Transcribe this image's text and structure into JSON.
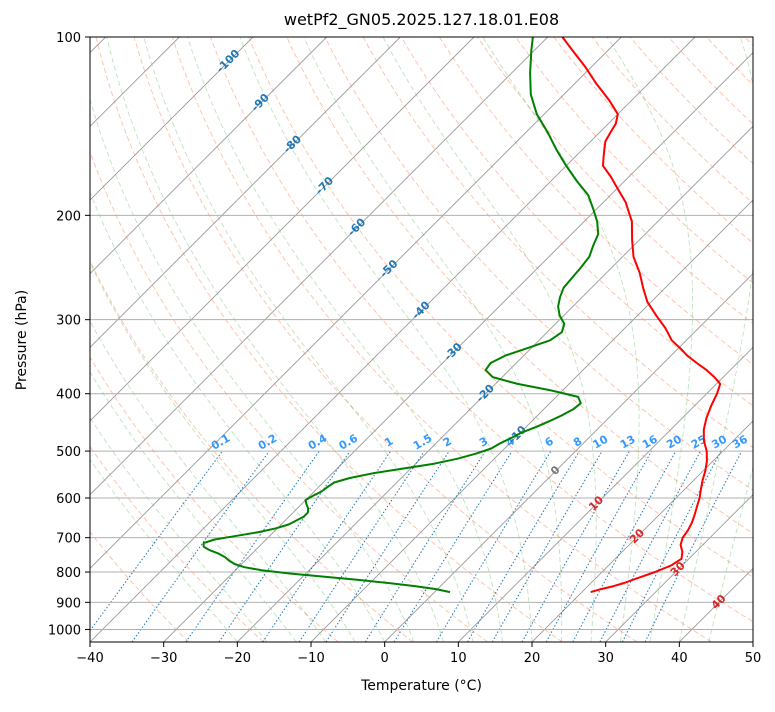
{
  "chart_data": {
    "type": "line",
    "title": "wetPf2_GN05.2025.127.18.01.E08",
    "xlabel": "Temperature (°C)",
    "ylabel": "Pressure (hPa)",
    "xlim": [
      -40,
      50
    ],
    "ylim": [
      1050,
      100
    ],
    "y_scale": "log",
    "grid": true,
    "x_ticks": [
      -40,
      -30,
      -20,
      -10,
      0,
      10,
      20,
      30,
      40,
      50
    ],
    "x_tick_labels": [
      "−40",
      "−30",
      "−20",
      "−10",
      "0",
      "10",
      "20",
      "30",
      "40",
      "50"
    ],
    "y_ticks": [
      100,
      200,
      300,
      400,
      500,
      600,
      700,
      800,
      900,
      1000
    ],
    "y_tick_labels": [
      "100",
      "200",
      "300",
      "400",
      "500",
      "600",
      "700",
      "800",
      "900",
      "1000"
    ],
    "isotherm_labels": [
      {
        "t": -100,
        "label": "-100"
      },
      {
        "t": -90,
        "label": "-90"
      },
      {
        "t": -80,
        "label": "-80"
      },
      {
        "t": -70,
        "label": "-70"
      },
      {
        "t": -60,
        "label": "-60"
      },
      {
        "t": -50,
        "label": "-50"
      },
      {
        "t": -40,
        "label": "-40"
      },
      {
        "t": -30,
        "label": "-30"
      },
      {
        "t": -20,
        "label": "-20"
      },
      {
        "t": -10,
        "label": "-10"
      },
      {
        "t": 0,
        "label": "0"
      },
      {
        "t": 10,
        "label": "10"
      },
      {
        "t": 20,
        "label": "20"
      },
      {
        "t": 30,
        "label": "30"
      },
      {
        "t": 40,
        "label": "40"
      }
    ],
    "mixing_ratio_labels": [
      "0.1",
      "0.2",
      "0.4",
      "0.6",
      "1",
      "1.5",
      "2",
      "3",
      "4",
      "6",
      "8",
      "10",
      "13",
      "16",
      "20",
      "25",
      "30",
      "36"
    ],
    "series": [
      {
        "color": "#ff0000",
        "pressure": [
          865,
          855,
          845,
          835,
          825,
          815,
          800,
          780,
          760,
          740,
          720,
          700,
          680,
          660,
          640,
          620,
          600,
          580,
          560,
          540,
          520,
          500,
          480,
          460,
          440,
          420,
          400,
          385,
          375,
          365,
          355,
          345,
          335,
          325,
          310,
          295,
          280,
          265,
          250,
          235,
          220,
          205,
          190,
          180,
          172,
          165,
          160,
          155,
          150,
          145,
          140,
          135,
          128,
          120,
          112,
          105,
          100
        ],
        "temperature": [
          21.2,
          22.2,
          23.5,
          24.5,
          25.2,
          26,
          27.2,
          28.5,
          29,
          28.2,
          27,
          26.3,
          26,
          25.5,
          24.8,
          24,
          23.2,
          22.2,
          21.2,
          20.3,
          19.2,
          17.8,
          16,
          14.5,
          13.3,
          12.3,
          11.4,
          10.5,
          8.8,
          6.8,
          4.5,
          2.2,
          0.2,
          -2,
          -4.5,
          -7.5,
          -10.5,
          -13,
          -15.5,
          -18.5,
          -21,
          -23.5,
          -27,
          -30,
          -32.5,
          -35,
          -36,
          -37,
          -38,
          -38.5,
          -39,
          -40,
          -43,
          -47,
          -51,
          -55,
          -58
        ]
      },
      {
        "color": "#008000",
        "pressure": [
          865,
          855,
          845,
          835,
          825,
          815,
          805,
          795,
          785,
          775,
          765,
          755,
          745,
          735,
          725,
          715,
          705,
          695,
          685,
          675,
          665,
          655,
          645,
          635,
          625,
          615,
          605,
          595,
          585,
          575,
          565,
          555,
          545,
          535,
          525,
          515,
          505,
          495,
          485,
          475,
          465,
          455,
          445,
          435,
          425,
          415,
          405,
          395,
          385,
          375,
          365,
          355,
          345,
          335,
          325,
          315,
          305,
          295,
          285,
          275,
          265,
          255,
          245,
          235,
          225,
          215,
          205,
          195,
          185,
          175,
          165,
          155,
          145,
          135,
          125,
          115,
          105,
          100
        ],
        "temperature": [
          2.1,
          -0.2,
          -3.5,
          -7.5,
          -12,
          -17,
          -22,
          -26.3,
          -29.2,
          -31,
          -32.2,
          -33.2,
          -34.5,
          -36.2,
          -37.5,
          -38,
          -37,
          -34.5,
          -32,
          -30.2,
          -29,
          -28.5,
          -28,
          -28,
          -28.5,
          -29.3,
          -30,
          -29.6,
          -29,
          -28.8,
          -28.5,
          -27,
          -24.5,
          -21,
          -17.5,
          -15,
          -13.2,
          -11.8,
          -11.3,
          -10.5,
          -9.8,
          -8.6,
          -7.6,
          -6.7,
          -6,
          -5.8,
          -7,
          -11.5,
          -17,
          -21.3,
          -23.2,
          -23.5,
          -22.5,
          -20.5,
          -18.5,
          -18,
          -18.8,
          -20.6,
          -22,
          -23,
          -23.8,
          -24,
          -24.2,
          -24.5,
          -25.5,
          -26.4,
          -28.2,
          -30.5,
          -33,
          -36.5,
          -40,
          -43.5,
          -47,
          -51,
          -54.5,
          -57.5,
          -60.5,
          -62
        ]
      }
    ]
  }
}
